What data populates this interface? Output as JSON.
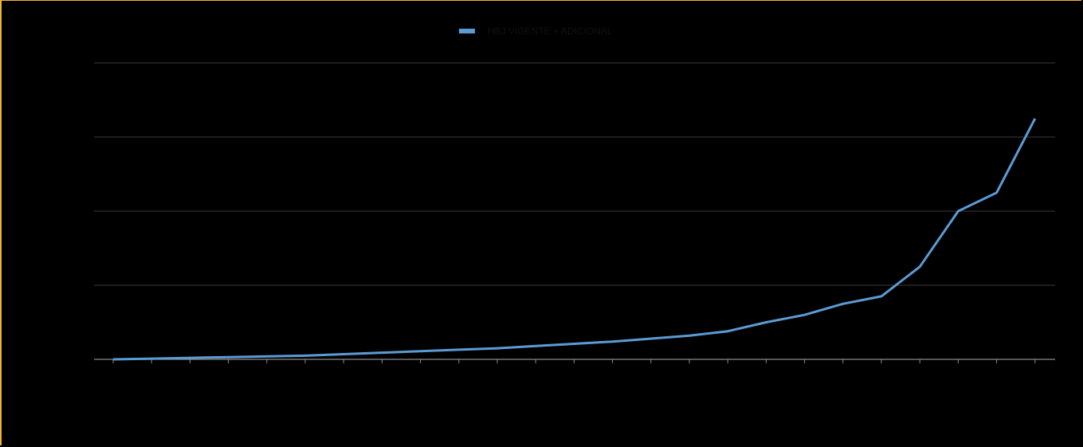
{
  "colors": {
    "background": "#000000",
    "border": "#f2b233",
    "gridline": "#3a3a3a",
    "axis": "#8c8c8c",
    "series": "#5b9bd5",
    "legend_text": "#111111"
  },
  "chart_data": {
    "type": "line",
    "title": "",
    "xlabel": "",
    "ylabel": "",
    "grid": true,
    "legend_position": "top-center",
    "ylim": [
      0,
      4
    ],
    "y_gridlines": [
      0,
      1,
      2,
      3,
      4
    ],
    "x": [
      1,
      2,
      3,
      4,
      5,
      6,
      7,
      8,
      9,
      10,
      11,
      12,
      13,
      14,
      15,
      16,
      17,
      18,
      19,
      20,
      21,
      22,
      23,
      24,
      25
    ],
    "series": [
      {
        "name": "HBJ VIGENTE + ADICIONAL",
        "color": "#5b9bd5",
        "values": [
          0.0,
          0.01,
          0.02,
          0.03,
          0.04,
          0.05,
          0.07,
          0.09,
          0.11,
          0.13,
          0.15,
          0.18,
          0.21,
          0.24,
          0.28,
          0.32,
          0.38,
          0.5,
          0.6,
          0.75,
          0.85,
          1.25,
          2.0,
          2.25,
          3.25
        ]
      }
    ]
  }
}
